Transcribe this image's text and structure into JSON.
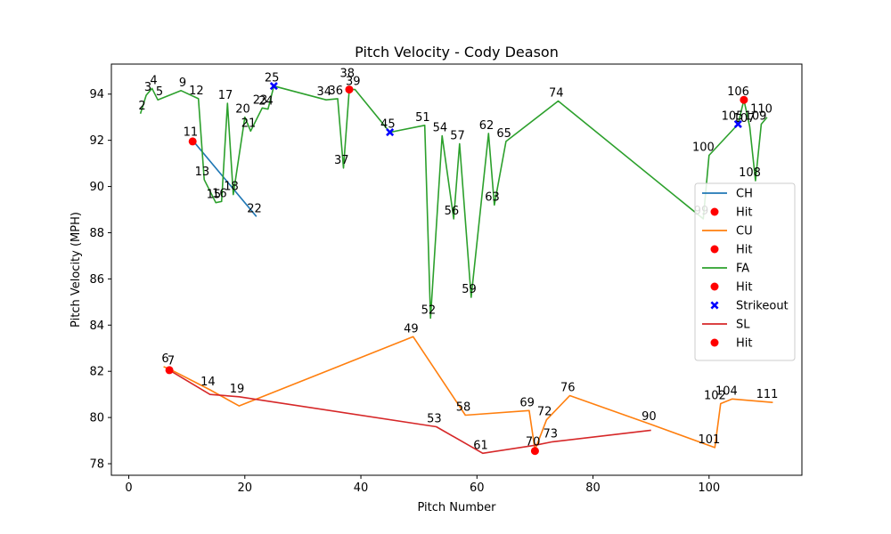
{
  "chart_data": {
    "type": "line",
    "title": "Pitch Velocity - Cody Deason",
    "xlabel": "Pitch Number",
    "ylabel": "Pitch Velocity (MPH)",
    "xlim": [
      -3,
      116
    ],
    "ylim": [
      77.5,
      95.3
    ],
    "xticks": [
      0,
      20,
      40,
      60,
      80,
      100
    ],
    "yticks": [
      78,
      80,
      82,
      84,
      86,
      88,
      90,
      92,
      94
    ],
    "grid": false,
    "legend_position": "right",
    "series": [
      {
        "name": "CH",
        "color": "#1f77b4",
        "points": [
          [
            11,
            92.0
          ],
          [
            22,
            88.7
          ]
        ],
        "hits": [
          [
            11,
            91.95
          ]
        ],
        "strikeouts": []
      },
      {
        "name": "CU",
        "color": "#ff7f0e",
        "points": [
          [
            6,
            82.2
          ],
          [
            7,
            82.1
          ],
          [
            14,
            81.2
          ],
          [
            19,
            80.5
          ],
          [
            49,
            83.5
          ],
          [
            58,
            80.1
          ],
          [
            69,
            80.3
          ],
          [
            70,
            78.6
          ],
          [
            72,
            79.9
          ],
          [
            76,
            80.95
          ],
          [
            90,
            79.7
          ],
          [
            101,
            78.7
          ],
          [
            102,
            80.6
          ],
          [
            104,
            80.8
          ],
          [
            111,
            80.65
          ]
        ],
        "hits": [
          [
            70,
            78.55
          ]
        ],
        "strikeouts": []
      },
      {
        "name": "FA",
        "color": "#2ca02c",
        "points": [
          [
            2,
            93.15
          ],
          [
            3,
            93.95
          ],
          [
            4,
            94.25
          ],
          [
            5,
            93.75
          ],
          [
            9,
            94.15
          ],
          [
            12,
            93.8
          ],
          [
            13,
            90.3
          ],
          [
            15,
            89.3
          ],
          [
            16,
            89.35
          ],
          [
            17,
            93.6
          ],
          [
            18,
            89.65
          ],
          [
            20,
            93.0
          ],
          [
            21,
            92.4
          ],
          [
            23,
            93.4
          ],
          [
            24,
            93.35
          ],
          [
            25,
            94.35
          ],
          [
            34,
            93.75
          ],
          [
            36,
            93.8
          ],
          [
            37,
            90.8
          ],
          [
            38,
            94.2
          ],
          [
            39,
            94.2
          ],
          [
            45,
            92.35
          ],
          [
            51,
            92.65
          ],
          [
            52,
            84.3
          ],
          [
            54,
            92.2
          ],
          [
            56,
            88.6
          ],
          [
            57,
            91.85
          ],
          [
            59,
            85.2
          ],
          [
            62,
            92.3
          ],
          [
            63,
            89.2
          ],
          [
            65,
            91.95
          ],
          [
            74,
            93.7
          ],
          [
            99,
            88.6
          ],
          [
            100,
            91.35
          ],
          [
            105,
            92.7
          ],
          [
            106,
            93.75
          ],
          [
            107,
            92.6
          ],
          [
            108,
            90.25
          ],
          [
            109,
            92.7
          ],
          [
            110,
            93.0
          ]
        ],
        "hits": [
          [
            38,
            94.2
          ],
          [
            106,
            93.75
          ]
        ],
        "strikeouts": [
          [
            25,
            94.35
          ],
          [
            45,
            92.35
          ],
          [
            105,
            92.7
          ]
        ]
      },
      {
        "name": "SL",
        "color": "#d62728",
        "points": [
          [
            7,
            82.05
          ],
          [
            14,
            81.0
          ],
          [
            19,
            80.9
          ],
          [
            53,
            79.6
          ],
          [
            61,
            78.45
          ],
          [
            70,
            78.8
          ],
          [
            73,
            78.95
          ],
          [
            90,
            79.45
          ]
        ],
        "hits": [
          [
            7,
            82.05
          ]
        ],
        "strikeouts": []
      }
    ],
    "point_labels": [
      {
        "text": "2",
        "x": 2,
        "y": 93.15
      },
      {
        "text": "3",
        "x": 3,
        "y": 93.95
      },
      {
        "text": "4",
        "x": 4,
        "y": 94.25
      },
      {
        "text": "5",
        "x": 5,
        "y": 93.75
      },
      {
        "text": "9",
        "x": 9,
        "y": 94.15
      },
      {
        "text": "12",
        "x": 12,
        "y": 93.8
      },
      {
        "text": "11",
        "x": 11,
        "y": 92.0
      },
      {
        "text": "13",
        "x": 13,
        "y": 90.3
      },
      {
        "text": "15",
        "x": 15,
        "y": 89.3
      },
      {
        "text": "16",
        "x": 16,
        "y": 89.35
      },
      {
        "text": "17",
        "x": 17,
        "y": 93.6
      },
      {
        "text": "18",
        "x": 18,
        "y": 89.65
      },
      {
        "text": "20",
        "x": 20,
        "y": 93.0
      },
      {
        "text": "21",
        "x": 21,
        "y": 92.4
      },
      {
        "text": "22",
        "x": 22,
        "y": 88.7
      },
      {
        "text": "23",
        "x": 23,
        "y": 93.4
      },
      {
        "text": "24",
        "x": 24,
        "y": 93.35
      },
      {
        "text": "25",
        "x": 25,
        "y": 94.35
      },
      {
        "text": "34",
        "x": 34,
        "y": 93.75
      },
      {
        "text": "36",
        "x": 36,
        "y": 93.8
      },
      {
        "text": "37",
        "x": 37,
        "y": 90.8
      },
      {
        "text": "38",
        "x": 38,
        "y": 94.55
      },
      {
        "text": "39",
        "x": 39,
        "y": 94.2
      },
      {
        "text": "45",
        "x": 45,
        "y": 92.35
      },
      {
        "text": "51",
        "x": 51,
        "y": 92.65
      },
      {
        "text": "52",
        "x": 52,
        "y": 84.3
      },
      {
        "text": "54",
        "x": 54,
        "y": 92.2
      },
      {
        "text": "56",
        "x": 56,
        "y": 88.6
      },
      {
        "text": "57",
        "x": 57,
        "y": 91.85
      },
      {
        "text": "59",
        "x": 59,
        "y": 85.2
      },
      {
        "text": "62",
        "x": 62,
        "y": 92.3
      },
      {
        "text": "63",
        "x": 63,
        "y": 89.2
      },
      {
        "text": "65",
        "x": 65,
        "y": 91.95
      },
      {
        "text": "74",
        "x": 74,
        "y": 93.7
      },
      {
        "text": "99",
        "x": 99,
        "y": 88.6
      },
      {
        "text": "100",
        "x": 100,
        "y": 91.35
      },
      {
        "text": "105",
        "x": 105,
        "y": 92.7
      },
      {
        "text": "106",
        "x": 106,
        "y": 93.75
      },
      {
        "text": "107",
        "x": 107,
        "y": 92.6
      },
      {
        "text": "108",
        "x": 108,
        "y": 90.25
      },
      {
        "text": "109",
        "x": 109,
        "y": 92.7
      },
      {
        "text": "110",
        "x": 110,
        "y": 93.0
      },
      {
        "text": "6",
        "x": 6,
        "y": 82.2
      },
      {
        "text": "7",
        "x": 7,
        "y": 82.1
      },
      {
        "text": "14",
        "x": 14,
        "y": 81.2
      },
      {
        "text": "19",
        "x": 19,
        "y": 80.9
      },
      {
        "text": "49",
        "x": 49,
        "y": 83.5
      },
      {
        "text": "53",
        "x": 53,
        "y": 79.6
      },
      {
        "text": "58",
        "x": 58,
        "y": 80.1
      },
      {
        "text": "61",
        "x": 61,
        "y": 78.45
      },
      {
        "text": "69",
        "x": 69,
        "y": 80.3
      },
      {
        "text": "70",
        "x": 70,
        "y": 78.6
      },
      {
        "text": "72",
        "x": 72,
        "y": 79.9
      },
      {
        "text": "73",
        "x": 73,
        "y": 78.95
      },
      {
        "text": "76",
        "x": 76,
        "y": 80.95
      },
      {
        "text": "90",
        "x": 90,
        "y": 79.7
      },
      {
        "text": "101",
        "x": 101,
        "y": 78.7
      },
      {
        "text": "102",
        "x": 102,
        "y": 80.6
      },
      {
        "text": "104",
        "x": 104,
        "y": 80.8
      },
      {
        "text": "111",
        "x": 111,
        "y": 80.65
      }
    ],
    "legend": [
      {
        "label": "CH",
        "kind": "line",
        "color": "#1f77b4"
      },
      {
        "label": "Hit",
        "kind": "hit",
        "color": "#ff0000"
      },
      {
        "label": "CU",
        "kind": "line",
        "color": "#ff7f0e"
      },
      {
        "label": "Hit",
        "kind": "hit",
        "color": "#ff0000"
      },
      {
        "label": "FA",
        "kind": "line",
        "color": "#2ca02c"
      },
      {
        "label": "Hit",
        "kind": "hit",
        "color": "#ff0000"
      },
      {
        "label": "Strikeout",
        "kind": "strikeout",
        "color": "#0000ff"
      },
      {
        "label": "SL",
        "kind": "line",
        "color": "#d62728"
      },
      {
        "label": "Hit",
        "kind": "hit",
        "color": "#ff0000"
      }
    ]
  }
}
